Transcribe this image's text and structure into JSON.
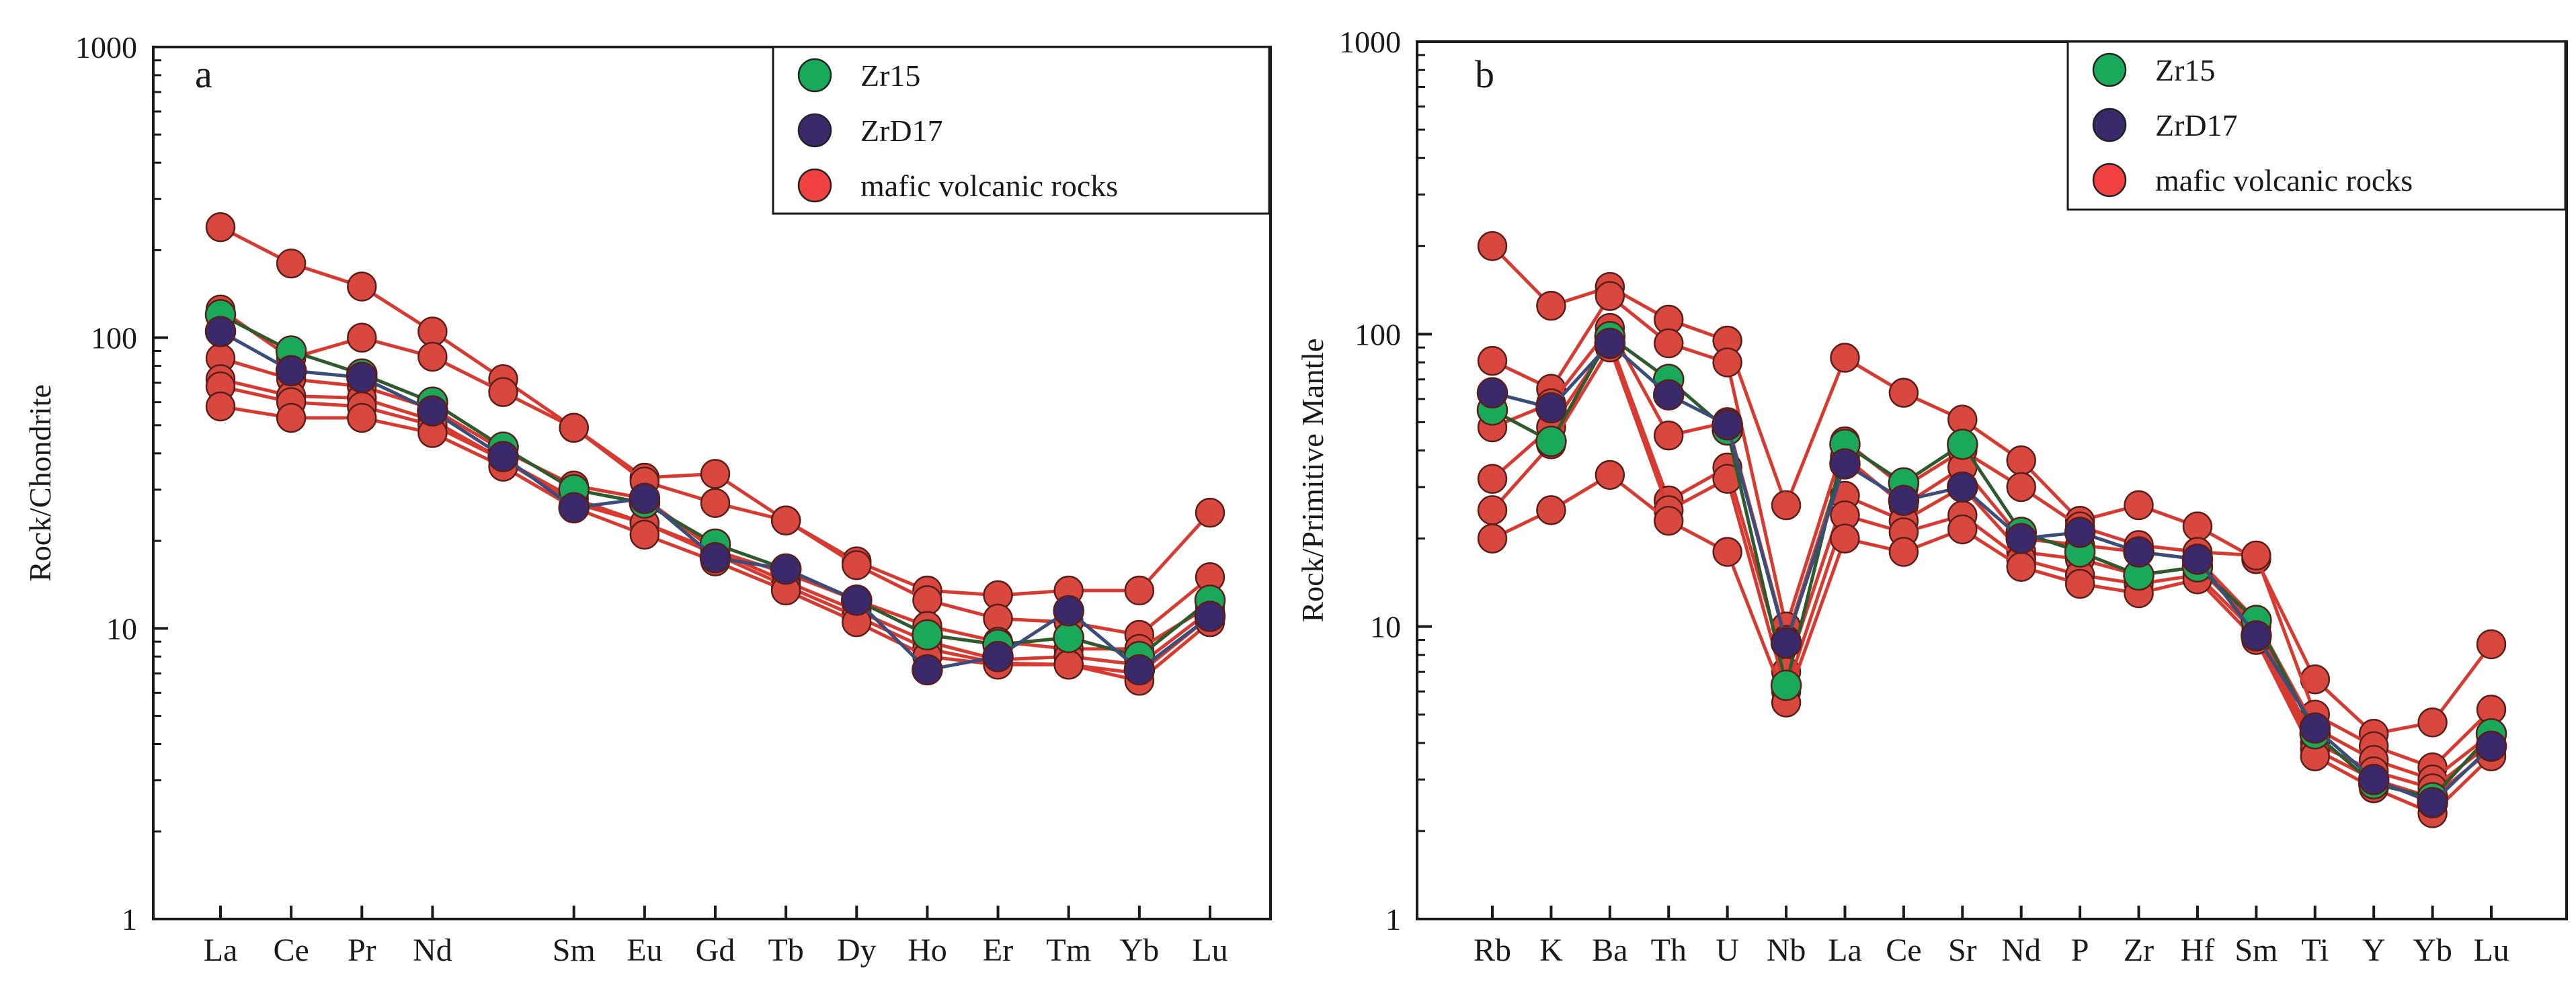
{
  "colors": {
    "zr15": "#1aa85a",
    "zrd17": "#3b2a6b",
    "zrd17_line": "#3b4d7a",
    "zr15_line": "#2e5a2e",
    "mafic_fill": "#d8483e",
    "mafic_line": "#d63a30",
    "axis": "#1a1a1a",
    "background": "#ffffff"
  },
  "chart_data": [
    {
      "type": "line",
      "panel": "a",
      "title": "",
      "xlabel": "",
      "ylabel": "Rock/Chondrite",
      "yscale": "log",
      "ylim": [
        1,
        1000
      ],
      "yticks": [
        "1",
        "10",
        "100",
        "1000"
      ],
      "categories": [
        "La",
        "Ce",
        "Pr",
        "Nd",
        "",
        "Sm",
        "Eu",
        "Gd",
        "Tb",
        "Dy",
        "Ho",
        "Er",
        "Tm",
        "Yb",
        "Lu"
      ],
      "legend": {
        "position": "top-right",
        "entries": [
          {
            "label": "Zr15",
            "key": "zr15"
          },
          {
            "label": "ZrD17",
            "key": "zrd17"
          },
          {
            "label": "mafic volcanic rocks",
            "key": "mafic"
          }
        ]
      },
      "series": [
        {
          "name": "mafic volcanic rocks",
          "group": "mafic",
          "values": [
            240,
            180,
            150,
            105,
            72,
            49,
            33,
            34,
            23.5,
            17,
            13.5,
            13,
            13.5,
            13.5,
            25
          ]
        },
        {
          "name": "mafic volcanic rocks",
          "group": "mafic",
          "values": [
            125,
            85,
            100,
            86,
            65,
            49,
            32,
            27,
            23.5,
            16.5,
            12.5,
            10.8,
            10.5,
            9.5,
            15
          ]
        },
        {
          "name": "mafic volcanic rocks",
          "group": "mafic",
          "values": [
            85,
            72,
            68,
            57,
            41,
            31,
            28,
            18.5,
            15.5,
            12.5,
            10.2,
            9,
            8.5,
            8.5,
            12
          ]
        },
        {
          "name": "mafic volcanic rocks",
          "group": "mafic",
          "values": [
            72,
            63,
            62,
            52,
            38,
            28,
            23,
            18.5,
            14.5,
            11.5,
            9,
            7.8,
            8,
            7.5,
            11.5
          ]
        },
        {
          "name": "mafic volcanic rocks",
          "group": "mafic",
          "values": [
            68,
            60,
            58,
            50,
            38,
            27,
            23,
            18,
            14,
            11,
            8.5,
            7.6,
            7.5,
            7,
            11
          ]
        },
        {
          "name": "mafic volcanic rocks",
          "group": "mafic",
          "values": [
            58,
            53,
            53,
            47,
            36,
            26,
            21,
            17,
            13.5,
            10.5,
            8,
            7.5,
            7.5,
            6.6,
            10.5
          ]
        },
        {
          "name": "Zr15",
          "group": "zr15",
          "values": [
            120,
            90,
            75,
            60,
            42,
            30,
            27,
            19.5,
            16,
            12.5,
            9.5,
            8.8,
            9.3,
            8,
            12.5
          ]
        },
        {
          "name": "ZrD17",
          "group": "zrd17",
          "values": [
            105,
            77,
            73,
            56,
            39,
            26,
            28,
            17.5,
            16,
            12.5,
            7.2,
            8,
            11.5,
            7.2,
            11
          ]
        }
      ]
    },
    {
      "type": "line",
      "panel": "b",
      "title": "",
      "xlabel": "",
      "ylabel": "Rock/Primitive Mantle",
      "yscale": "log",
      "ylim": [
        1,
        1000
      ],
      "yticks": [
        "1",
        "10",
        "100",
        "1000"
      ],
      "categories": [
        "Rb",
        "K",
        "Ba",
        "Th",
        "U",
        "Nb",
        "La",
        "Ce",
        "Sr",
        "Nd",
        "P",
        "Zr",
        "Hf",
        "Sm",
        "Ti",
        "Y",
        "Yb",
        "Lu"
      ],
      "legend": {
        "position": "top-right",
        "entries": [
          {
            "label": "Zr15",
            "key": "zr15"
          },
          {
            "label": "ZrD17",
            "key": "zrd17"
          },
          {
            "label": "mafic volcanic rocks",
            "key": "mafic"
          }
        ]
      },
      "series": [
        {
          "name": "mafic volcanic rocks",
          "group": "mafic",
          "values": [
            200,
            125,
            145,
            112,
            95,
            26,
            83,
            63,
            51,
            37,
            23,
            26,
            22,
            17,
            6.6,
            4.3,
            4.7,
            8.7
          ]
        },
        {
          "name": "mafic volcanic rocks",
          "group": "mafic",
          "values": [
            81,
            65,
            135,
            93,
            80,
            10,
            43,
            30,
            40,
            30,
            22,
            19,
            18,
            17.5,
            5,
            3.9,
            3.3,
            5.2
          ]
        },
        {
          "name": "mafic volcanic rocks",
          "group": "mafic",
          "values": [
            48,
            58,
            105,
            45,
            50,
            9,
            38,
            26,
            35,
            20,
            19,
            18,
            17,
            10.5,
            4.5,
            3.5,
            3,
            4.3
          ]
        },
        {
          "name": "mafic volcanic rocks",
          "group": "mafic",
          "values": [
            32,
            48,
            95,
            27,
            35,
            7,
            28,
            23,
            30,
            18,
            17,
            15,
            16,
            10,
            4,
            3.2,
            2.8,
            4
          ]
        },
        {
          "name": "mafic volcanic rocks",
          "group": "mafic",
          "values": [
            25,
            42,
            90,
            25,
            32,
            6,
            24,
            21,
            24,
            17,
            15,
            14,
            15,
            9.5,
            3.8,
            3,
            2.6,
            3.8
          ]
        },
        {
          "name": "mafic volcanic rocks",
          "group": "mafic",
          "values": [
            20,
            25,
            33,
            23,
            18,
            5.5,
            20,
            18,
            21.5,
            16,
            14,
            13,
            14.5,
            9,
            3.6,
            2.8,
            2.3,
            3.6
          ]
        },
        {
          "name": "Zr15",
          "group": "zr15",
          "values": [
            55,
            43,
            98,
            70,
            47,
            6.3,
            42,
            31,
            42,
            21,
            18,
            15,
            16,
            10.5,
            4.3,
            2.9,
            2.6,
            4.3
          ]
        },
        {
          "name": "ZrD17",
          "group": "zrd17",
          "values": [
            63,
            56,
            93,
            62,
            49,
            8.8,
            36,
            27,
            30,
            20,
            21,
            18,
            17,
            9.3,
            4.5,
            3,
            2.5,
            3.9
          ]
        }
      ]
    }
  ]
}
